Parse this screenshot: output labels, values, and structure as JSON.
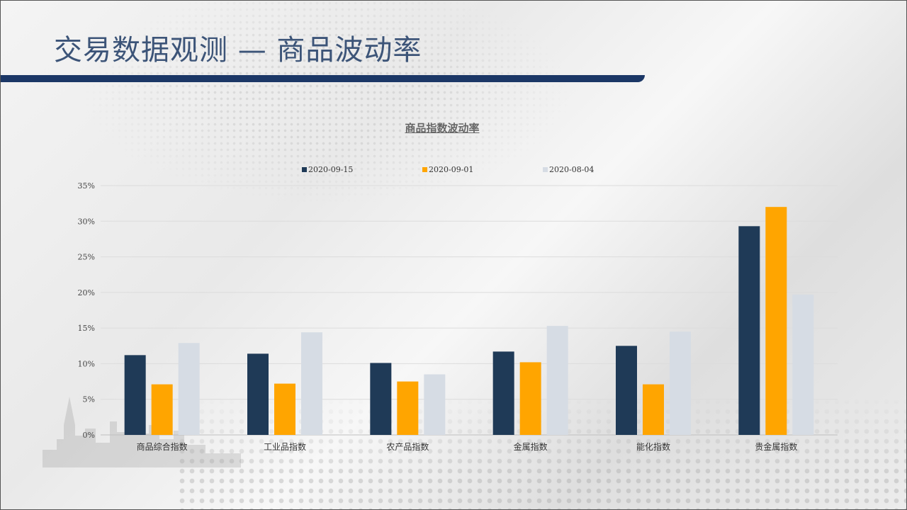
{
  "page": {
    "title": "交易数据观测 — 商品波动率"
  },
  "colors": {
    "title": "#3c5478",
    "title_bar": "#1b3766",
    "series": [
      "#1f3a57",
      "#ffa500",
      "#d6dce4"
    ]
  },
  "chart_data": {
    "type": "bar",
    "title": "商品指数波动率",
    "xlabel": "",
    "ylabel": "",
    "ylim": [
      0,
      35
    ],
    "yticks": [
      "0%",
      "5%",
      "10%",
      "15%",
      "20%",
      "25%",
      "30%",
      "35%"
    ],
    "grid": true,
    "legend_position": "top",
    "categories": [
      "商品综合指数",
      "工业品指数",
      "农产品指数",
      "金属指数",
      "能化指数",
      "贵金属指数"
    ],
    "series": [
      {
        "name": "2020-09-15",
        "values": [
          11.2,
          11.4,
          10.1,
          11.7,
          12.5,
          29.3
        ]
      },
      {
        "name": "2020-09-01",
        "values": [
          7.1,
          7.2,
          7.5,
          10.2,
          7.1,
          32.0
        ]
      },
      {
        "name": "2020-08-04",
        "values": [
          12.9,
          14.4,
          8.5,
          15.3,
          14.5,
          19.7
        ]
      }
    ]
  }
}
